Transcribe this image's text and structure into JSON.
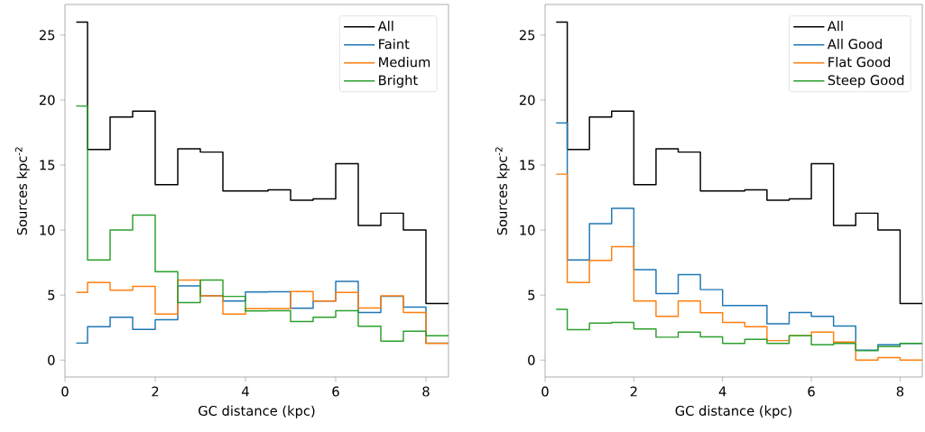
{
  "chart_data": [
    {
      "type": "histogram",
      "xlabel": "GC distance (kpc)",
      "ylabel": "Sources kpc$^{-2}$",
      "bins": [
        0.25,
        0.5,
        1.0,
        1.5,
        2.0,
        2.5,
        3.0,
        3.5,
        4.0,
        4.5,
        5.0,
        5.5,
        6.0,
        6.5,
        7.0,
        7.5,
        8.0,
        8.5
      ],
      "series": [
        {
          "name": "All",
          "color": "#000000",
          "values": [
            26.0,
            16.2,
            18.7,
            19.15,
            13.5,
            16.25,
            16.0,
            13.0,
            13.0,
            13.1,
            12.3,
            12.4,
            15.1,
            10.35,
            11.3,
            10.0,
            4.35
          ]
        },
        {
          "name": "Faint",
          "color": "#1f77b4",
          "values": [
            1.3,
            2.57,
            3.3,
            2.36,
            3.1,
            5.7,
            4.95,
            4.54,
            5.24,
            5.25,
            3.99,
            4.55,
            6.05,
            3.66,
            4.9,
            4.08,
            1.3
          ]
        },
        {
          "name": "Medium",
          "color": "#ff7f0e",
          "values": [
            5.2,
            5.97,
            5.37,
            5.67,
            3.54,
            6.16,
            4.95,
            3.54,
            3.96,
            3.96,
            5.28,
            4.55,
            5.2,
            4.0,
            4.95,
            3.66,
            1.28
          ]
        },
        {
          "name": "Bright",
          "color": "#2ca02c",
          "values": [
            19.55,
            7.7,
            10.0,
            11.15,
            6.8,
            4.42,
            6.15,
            4.9,
            3.78,
            3.8,
            2.97,
            3.3,
            3.8,
            2.6,
            1.46,
            2.22,
            1.87
          ]
        }
      ],
      "xlim": [
        0,
        8.5
      ],
      "ylim": [
        -1.3,
        27.35
      ],
      "xticks": [
        0,
        2,
        4,
        6,
        8
      ],
      "yticks": [
        0,
        5,
        10,
        15,
        20,
        25
      ],
      "legend": "top right"
    },
    {
      "type": "histogram",
      "xlabel": "GC distance (kpc)",
      "ylabel": "Sources kpc$^{-2}$",
      "bins": [
        0.25,
        0.5,
        1.0,
        1.5,
        2.0,
        2.5,
        3.0,
        3.5,
        4.0,
        4.5,
        5.0,
        5.5,
        6.0,
        6.5,
        7.0,
        7.5,
        8.0,
        8.5
      ],
      "series": [
        {
          "name": "All",
          "color": "#000000",
          "values": [
            26.0,
            16.2,
            18.7,
            19.15,
            13.5,
            16.25,
            16.0,
            13.0,
            13.0,
            13.1,
            12.3,
            12.4,
            15.1,
            10.35,
            11.3,
            10.0,
            4.35
          ]
        },
        {
          "name": "All Good",
          "color": "#1f77b4",
          "values": [
            18.24,
            7.7,
            10.5,
            11.67,
            6.95,
            5.12,
            6.58,
            5.42,
            4.19,
            4.19,
            2.8,
            3.66,
            3.36,
            2.62,
            0.76,
            1.18,
            1.28
          ]
        },
        {
          "name": "Flat Good",
          "color": "#ff7f0e",
          "values": [
            14.3,
            5.97,
            7.67,
            8.73,
            4.54,
            3.36,
            4.54,
            3.64,
            2.9,
            2.57,
            1.5,
            1.87,
            2.15,
            1.39,
            0.0,
            0.19,
            0.0
          ]
        },
        {
          "name": "Steep Good",
          "color": "#2ca02c",
          "values": [
            3.9,
            2.34,
            2.85,
            2.9,
            2.4,
            1.76,
            2.15,
            1.78,
            1.28,
            1.6,
            1.28,
            1.87,
            1.18,
            1.28,
            0.72,
            1.04,
            1.28
          ]
        }
      ],
      "xlim": [
        0,
        8.5
      ],
      "ylim": [
        -1.3,
        27.35
      ],
      "xticks": [
        0,
        2,
        4,
        6,
        8
      ],
      "yticks": [
        0,
        5,
        10,
        15,
        20,
        25
      ],
      "legend": "top right"
    }
  ]
}
